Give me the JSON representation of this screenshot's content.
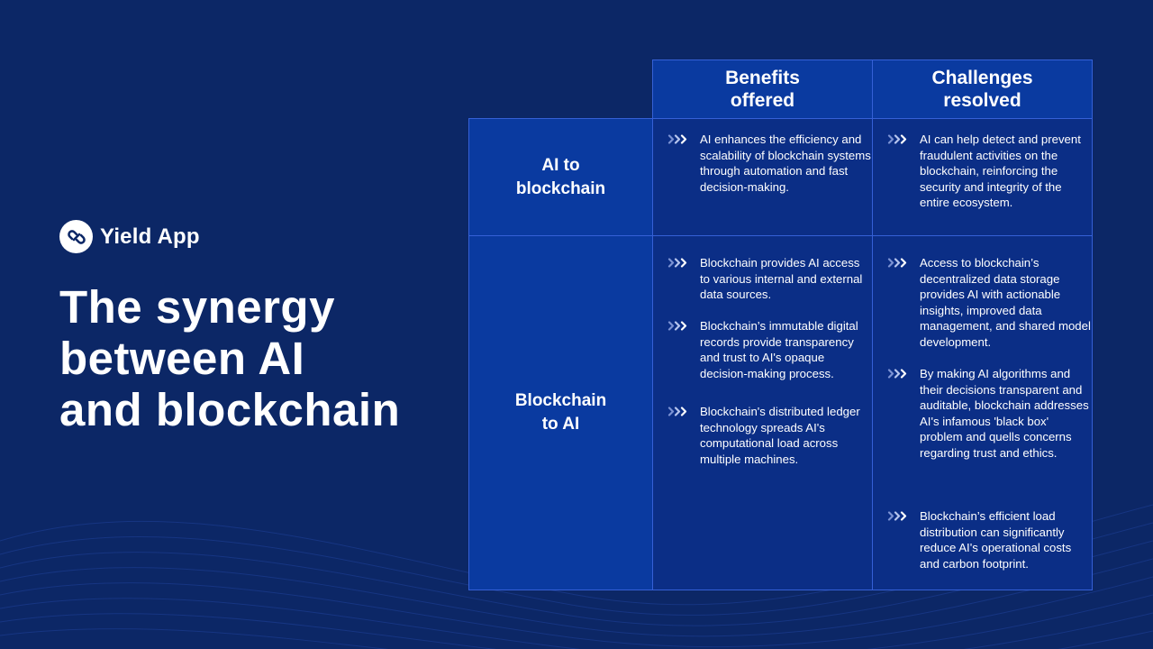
{
  "brand": {
    "name": "Yield App",
    "logo_icon": "link-icon"
  },
  "headline": [
    "The synergy",
    "between AI",
    "and blockchain"
  ],
  "table": {
    "columns": [
      {
        "line1": "Benefits",
        "line2": "offered"
      },
      {
        "line1": "Challenges",
        "line2": "resolved"
      }
    ],
    "rows": [
      {
        "label_line1": "AI to",
        "label_line2": "blockchain",
        "benefits": [
          "AI enhances the efficiency and scalability of blockchain systems through automation and fast decision-making."
        ],
        "challenges": [
          "AI can help detect and prevent fraudulent activities on the blockchain, reinforcing the security and integrity of the entire ecosystem."
        ]
      },
      {
        "label_line1": "Blockchain",
        "label_line2": "to AI",
        "benefits": [
          "Blockchain provides AI access to various internal and external data sources.",
          "Blockchain’s immutable digital records provide transparency and trust to AI's opaque decision-making process.",
          "Blockchain's distributed ledger technology spreads AI's computational load across multiple machines."
        ],
        "challenges": [
          "Access to blockchain’s decentralized data storage provides AI with actionable insights, improved data management, and shared model development.",
          "By making AI algorithms and their decisions transparent and auditable, blockchain addresses AI's infamous 'black box' problem and quells concerns regarding trust and ethics.",
          "Blockchain’s efficient load distribution can significantly reduce AI's operational costs and carbon footprint."
        ]
      }
    ]
  },
  "colors": {
    "background": "#0c2766",
    "header_fill": "#0a3aa0",
    "cell_fill": "#0b2e86",
    "border": "#3560d6"
  }
}
